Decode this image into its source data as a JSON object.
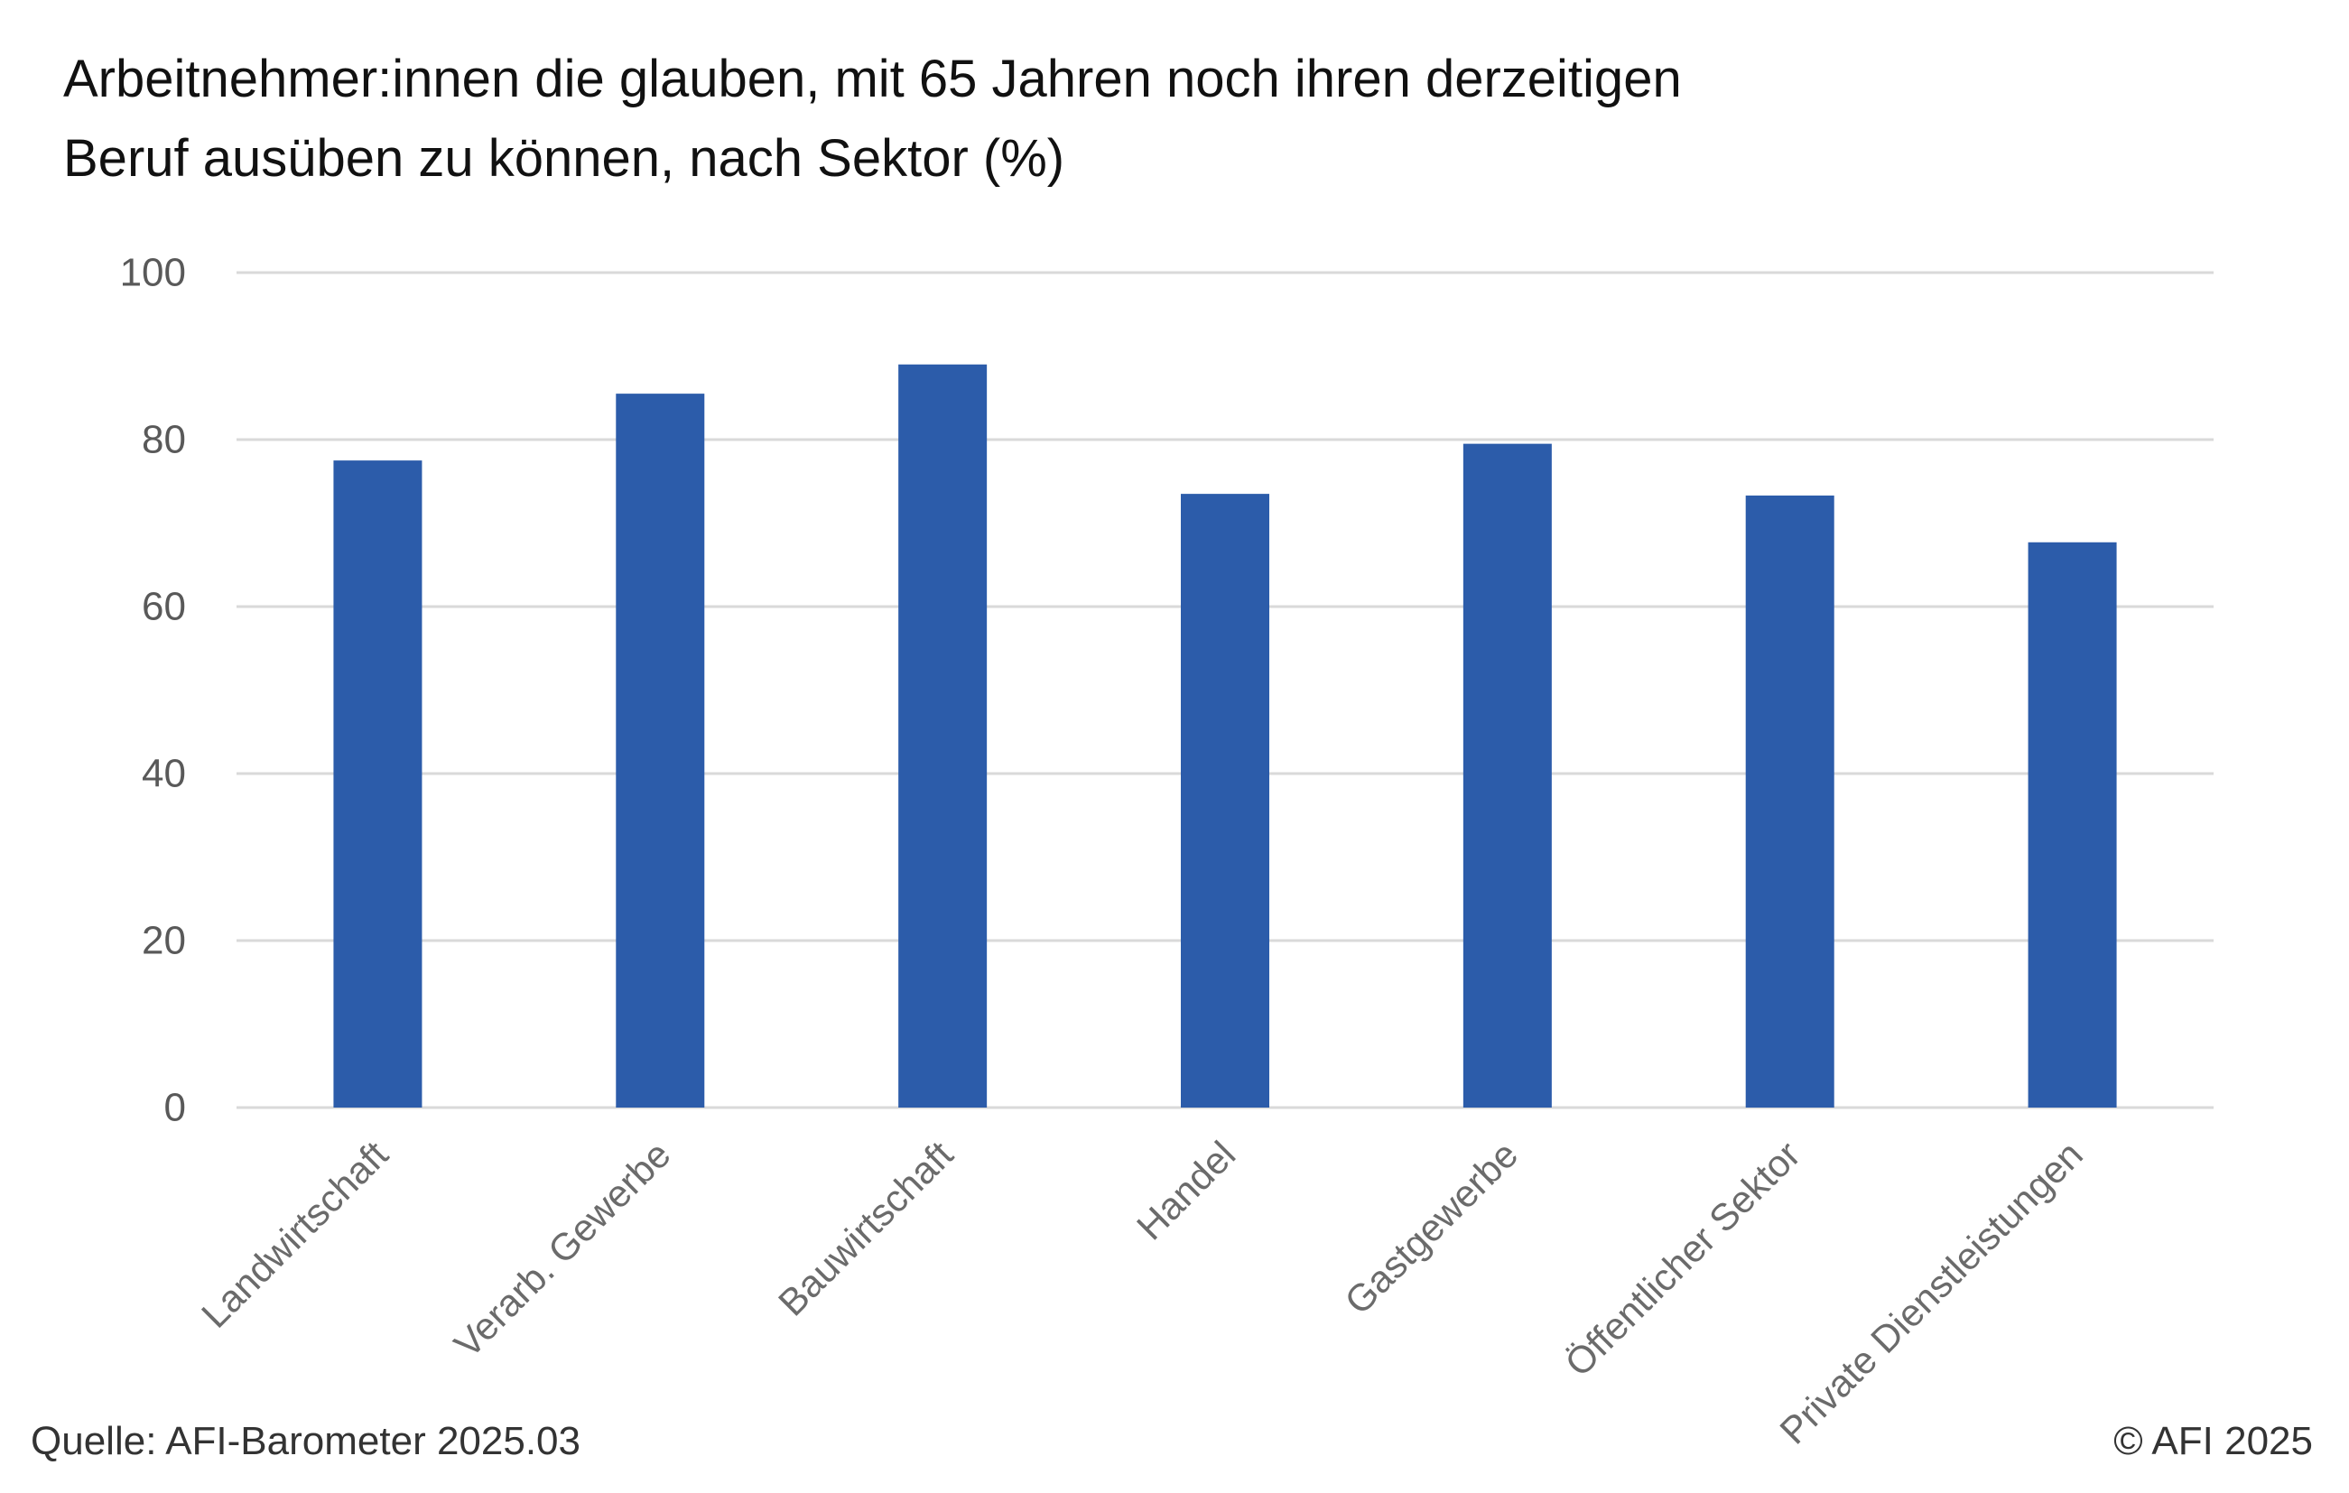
{
  "chart_data": {
    "type": "bar",
    "title_lines": [
      "Arbeitnehmer:innen die glauben, mit 65 Jahren noch ihren derzeitigen",
      "Beruf ausüben zu können, nach Sektor (%)"
    ],
    "categories": [
      "Landwirtschaft",
      "Verarb. Gewerbe",
      "Bauwirtschaft",
      "Handel",
      "Gastgewerbe",
      "Öffentlicher Sektor",
      "Private Dienstleistungen"
    ],
    "values": [
      77.5,
      85.5,
      89,
      73.5,
      79.5,
      73.3,
      67.7
    ],
    "ylim": [
      0,
      100
    ],
    "yticks": [
      0,
      20,
      40,
      60,
      80,
      100
    ],
    "grid": true,
    "bar_color": "#2C5CAA",
    "grid_color": "#D9D9D9"
  },
  "footer": {
    "source": "Quelle: AFI-Barometer 2025.03",
    "copyright": "© AFI 2025"
  }
}
